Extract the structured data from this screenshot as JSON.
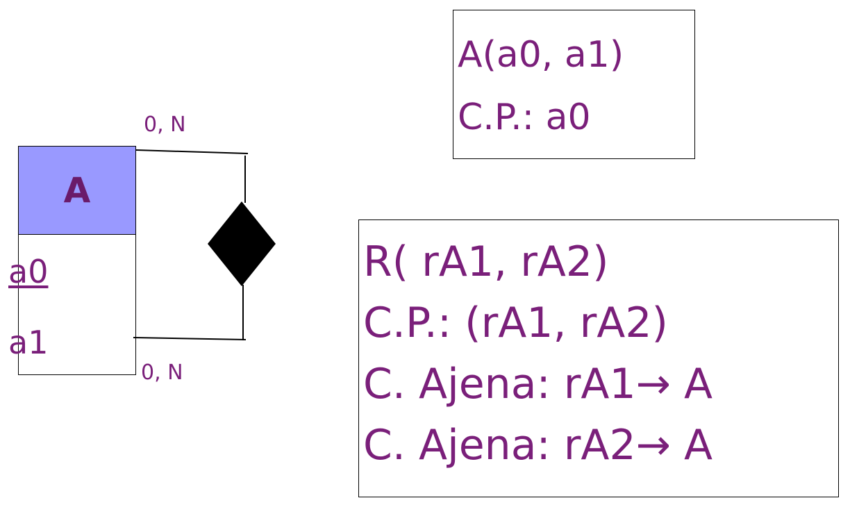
{
  "entity": {
    "name": "A",
    "attributes": [
      {
        "name": "a0",
        "primary_key": true
      },
      {
        "name": "a1",
        "primary_key": false
      }
    ],
    "header_color": "#9999ff"
  },
  "relationship": {
    "cardinality_top": "0, N",
    "cardinality_bottom": "0, N"
  },
  "schema_a": {
    "line1": "A(a0, a1)",
    "line2": "C.P.: a0"
  },
  "schema_r": {
    "line1": "R( rA1, rA2)",
    "line2": "C.P.: (rA1, rA2)",
    "line3": "C. Ajena: rA1→ A",
    "line4": "C. Ajena: rA2→ A"
  },
  "colors": {
    "text": "#7a1f7a",
    "entity_header": "#9999ff"
  }
}
